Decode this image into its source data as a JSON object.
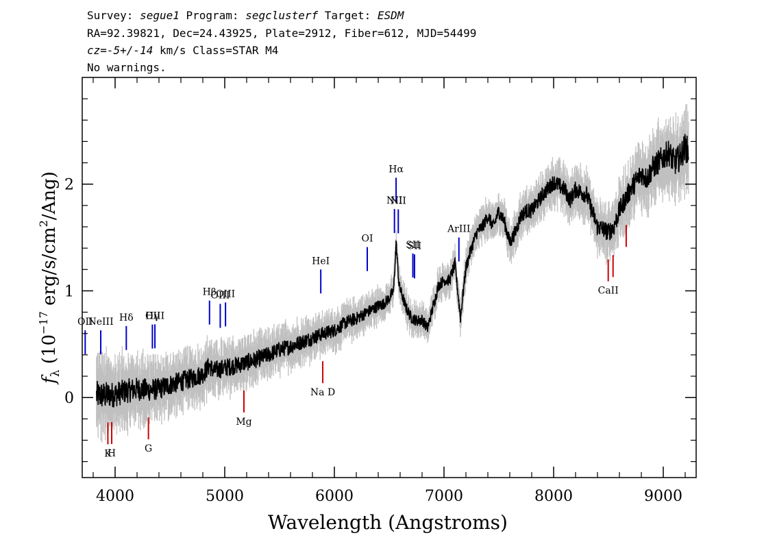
{
  "header": {
    "line1": {
      "survey_label": "Survey: ",
      "survey": "segue1",
      "program_label": " Program: ",
      "program": "segclusterf",
      "target_label": " Target: ",
      "target": "ESDM"
    },
    "line2": "RA=92.39821, Dec=24.43925, Plate=2912, Fiber=612, MJD=54499",
    "line3": {
      "cz": "cz=-5+/-14",
      "rest": " km/s Class=STAR M4"
    },
    "line4": "No warnings."
  },
  "chart_data": {
    "type": "line",
    "xlabel": "Wavelength (Angstroms)",
    "ylabel_prefix": "f",
    "ylabel_subscript": "λ",
    "ylabel_body": " (10",
    "ylabel_exp": "−17",
    "ylabel_units": " erg/s/cm",
    "ylabel_sq": "2",
    "ylabel_tail": "/Ang)",
    "xlim": [
      3700,
      9300
    ],
    "ylim": [
      -0.75,
      3.0
    ],
    "x_ticks": [
      4000,
      5000,
      6000,
      7000,
      8000,
      9000
    ],
    "x_tick_labels": [
      "4000",
      "5000",
      "6000",
      "7000",
      "8000",
      "9000"
    ],
    "y_ticks": [
      0,
      1,
      2
    ],
    "y_tick_labels": [
      "0",
      "1",
      "2"
    ],
    "grid": false,
    "series": [
      {
        "role": "flux",
        "color": "#000000",
        "x": [
          3830,
          3900,
          4000,
          4100,
          4200,
          4300,
          4400,
          4500,
          4600,
          4700,
          4800,
          4860,
          4900,
          5000,
          5100,
          5200,
          5300,
          5400,
          5500,
          5600,
          5700,
          5800,
          5900,
          6000,
          6100,
          6200,
          6300,
          6400,
          6450,
          6500,
          6540,
          6563,
          6590,
          6650,
          6700,
          6750,
          6800,
          6850,
          6900,
          6950,
          7000,
          7050,
          7100,
          7150,
          7200,
          7250,
          7300,
          7350,
          7400,
          7450,
          7500,
          7550,
          7600,
          7650,
          7700,
          7750,
          7800,
          7900,
          8000,
          8100,
          8150,
          8200,
          8300,
          8350,
          8400,
          8450,
          8500,
          8550,
          8600,
          8700,
          8800,
          8850,
          8900,
          8950,
          9000,
          9050,
          9100,
          9150,
          9200,
          9230
        ],
        "y": [
          0.02,
          0.02,
          0.03,
          0.06,
          0.08,
          0.07,
          0.08,
          0.12,
          0.15,
          0.18,
          0.22,
          0.3,
          0.25,
          0.28,
          0.3,
          0.33,
          0.36,
          0.4,
          0.45,
          0.48,
          0.52,
          0.56,
          0.6,
          0.63,
          0.7,
          0.74,
          0.8,
          0.86,
          0.88,
          0.93,
          1.0,
          1.45,
          1.05,
          0.85,
          0.75,
          0.72,
          0.73,
          0.65,
          0.85,
          1.05,
          1.1,
          1.1,
          1.25,
          0.75,
          1.22,
          1.4,
          1.55,
          1.6,
          1.7,
          1.6,
          1.75,
          1.65,
          1.45,
          1.55,
          1.7,
          1.75,
          1.75,
          1.9,
          2.02,
          1.95,
          1.85,
          1.95,
          1.9,
          1.75,
          1.6,
          1.58,
          1.55,
          1.6,
          1.75,
          1.95,
          2.1,
          2.05,
          2.15,
          2.2,
          2.25,
          2.3,
          2.2,
          2.25,
          2.35,
          2.3
        ]
      },
      {
        "role": "error",
        "color": "#c0c0c0",
        "x": [
          3830,
          4000,
          4500,
          5000,
          5500,
          6000,
          6500,
          7000,
          7500,
          8000,
          8500,
          9000,
          9230
        ],
        "y_err": [
          0.25,
          0.22,
          0.18,
          0.16,
          0.14,
          0.12,
          0.1,
          0.1,
          0.12,
          0.14,
          0.16,
          0.22,
          0.25
        ]
      }
    ],
    "emission_lines": [
      {
        "label": "OII",
        "x": 3727,
        "color": "#0000cc"
      },
      {
        "label": "NeIII",
        "x": 3869,
        "color": "#0000cc"
      },
      {
        "label": "Hδ",
        "x": 4102,
        "color": "#0000cc"
      },
      {
        "label": "Hγ",
        "x": 4340,
        "color": "#0000cc"
      },
      {
        "label": "OIII",
        "x": 4363,
        "color": "#0000cc"
      },
      {
        "label": "Hβ",
        "x": 4861,
        "color": "#0000cc"
      },
      {
        "label": "OIII",
        "x": 4959,
        "color": "#0000cc"
      },
      {
        "label": "OIII",
        "x": 5007,
        "color": "#0000cc"
      },
      {
        "label": "HeI",
        "x": 5876,
        "color": "#0000cc"
      },
      {
        "label": "OI",
        "x": 6300,
        "color": "#0000cc"
      },
      {
        "label": "NII",
        "x": 6548,
        "color": "#0000cc"
      },
      {
        "label": "Hα",
        "x": 6563,
        "color": "#0000cc"
      },
      {
        "label": "NII",
        "x": 6583,
        "color": "#0000cc"
      },
      {
        "label": "SII",
        "x": 6716,
        "color": "#0000cc"
      },
      {
        "label": "SII",
        "x": 6731,
        "color": "#0000cc"
      },
      {
        "label": "ArIII",
        "x": 7136,
        "color": "#0000cc"
      }
    ],
    "absorption_lines": [
      {
        "label": "K",
        "x": 3934,
        "color": "#cc0000"
      },
      {
        "label": "H",
        "x": 3969,
        "color": "#cc0000"
      },
      {
        "label": "G",
        "x": 4304,
        "color": "#cc0000"
      },
      {
        "label": "Mg",
        "x": 5175,
        "color": "#cc0000"
      },
      {
        "label": "Na D",
        "x": 5894,
        "color": "#cc0000"
      },
      {
        "label": "CaII",
        "x": 8498,
        "color": "#cc0000"
      },
      {
        "label": "",
        "x": 8542,
        "color": "#cc0000"
      },
      {
        "label": "",
        "x": 8662,
        "color": "#cc0000"
      }
    ]
  }
}
